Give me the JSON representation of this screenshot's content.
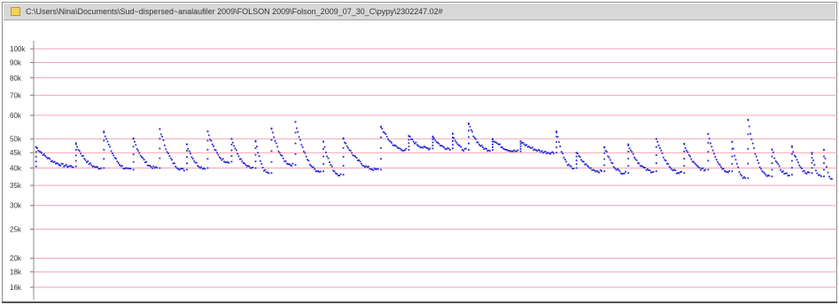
{
  "window": {
    "title": "C:\\Users\\Nina\\Documents\\Sud~dispersed~analaufiler 2009\\FOLSON 2009\\Folson_2009_07_30_C\\pypy\\2302247.02#",
    "icon": "folder-icon"
  },
  "colors": {
    "grid": "#f0a6b4",
    "points": "#2b2bd6",
    "tick_text": "#333333",
    "titlebar": "#d8d8d8"
  },
  "chart_data": {
    "type": "scatter",
    "title": "",
    "xlabel": "",
    "ylabel": "",
    "y_scale": "log",
    "ylim": [
      15500,
      110000
    ],
    "xlim": [
      0,
      100
    ],
    "grid": true,
    "y_ticks": [
      {
        "value": 100000,
        "label": "100k"
      },
      {
        "value": 90000,
        "label": "90k"
      },
      {
        "value": 80000,
        "label": "80k"
      },
      {
        "value": 70000,
        "label": "70k"
      },
      {
        "value": 60000,
        "label": "60k"
      },
      {
        "value": 50000,
        "label": "50k"
      },
      {
        "value": 45000,
        "label": "45k"
      },
      {
        "value": 40000,
        "label": "40k"
      },
      {
        "value": 35000,
        "label": "35k"
      },
      {
        "value": 30000,
        "label": "30k"
      },
      {
        "value": 25000,
        "label": "25k"
      },
      {
        "value": 20000,
        "label": "20k"
      },
      {
        "value": 18000,
        "label": "18k"
      },
      {
        "value": 16000,
        "label": "16k"
      }
    ],
    "series": [
      {
        "segments": [
          {
            "x": 0.3,
            "peak": 47000,
            "low": 40500
          },
          {
            "x": 5.3,
            "peak": 48000,
            "low": 40000
          },
          {
            "x": 8.8,
            "peak": 53000,
            "low": 39500
          },
          {
            "x": 12.5,
            "peak": 50000,
            "low": 40000
          },
          {
            "x": 15.8,
            "peak": 54000,
            "low": 39500
          },
          {
            "x": 19.2,
            "peak": 48000,
            "low": 40000
          },
          {
            "x": 21.8,
            "peak": 53000,
            "low": 42000
          },
          {
            "x": 24.8,
            "peak": 50000,
            "low": 40000
          },
          {
            "x": 27.8,
            "peak": 49000,
            "low": 38500
          },
          {
            "x": 29.8,
            "peak": 54000,
            "low": 41000
          },
          {
            "x": 32.8,
            "peak": 57000,
            "low": 39000
          },
          {
            "x": 36.3,
            "peak": 49000,
            "low": 38000
          },
          {
            "x": 38.8,
            "peak": 50000,
            "low": 39500
          },
          {
            "x": 43.5,
            "peak": 55000,
            "low": 46000
          },
          {
            "x": 47.0,
            "peak": 51000,
            "low": 46500
          },
          {
            "x": 50.0,
            "peak": 51000,
            "low": 46500
          },
          {
            "x": 52.5,
            "peak": 52000,
            "low": 46000
          },
          {
            "x": 54.5,
            "peak": 56000,
            "low": 46000
          },
          {
            "x": 57.5,
            "peak": 50000,
            "low": 45500
          },
          {
            "x": 61.0,
            "peak": 49000,
            "low": 45000
          },
          {
            "x": 65.5,
            "peak": 53000,
            "low": 40000
          },
          {
            "x": 68.0,
            "peak": 45000,
            "low": 39000
          },
          {
            "x": 71.5,
            "peak": 47000,
            "low": 38500
          },
          {
            "x": 74.5,
            "peak": 48000,
            "low": 39000
          },
          {
            "x": 78.0,
            "peak": 50000,
            "low": 38500
          },
          {
            "x": 81.5,
            "peak": 48000,
            "low": 39500
          },
          {
            "x": 84.5,
            "peak": 52000,
            "low": 39000
          },
          {
            "x": 87.5,
            "peak": 49000,
            "low": 37000
          },
          {
            "x": 89.5,
            "peak": 58000,
            "low": 37500
          },
          {
            "x": 92.5,
            "peak": 46000,
            "low": 38000
          },
          {
            "x": 95.0,
            "peak": 47000,
            "low": 38500
          },
          {
            "x": 97.5,
            "peak": 45000,
            "low": 37500
          },
          {
            "x": 99.0,
            "peak": 46000,
            "low": 37000
          }
        ]
      }
    ]
  }
}
